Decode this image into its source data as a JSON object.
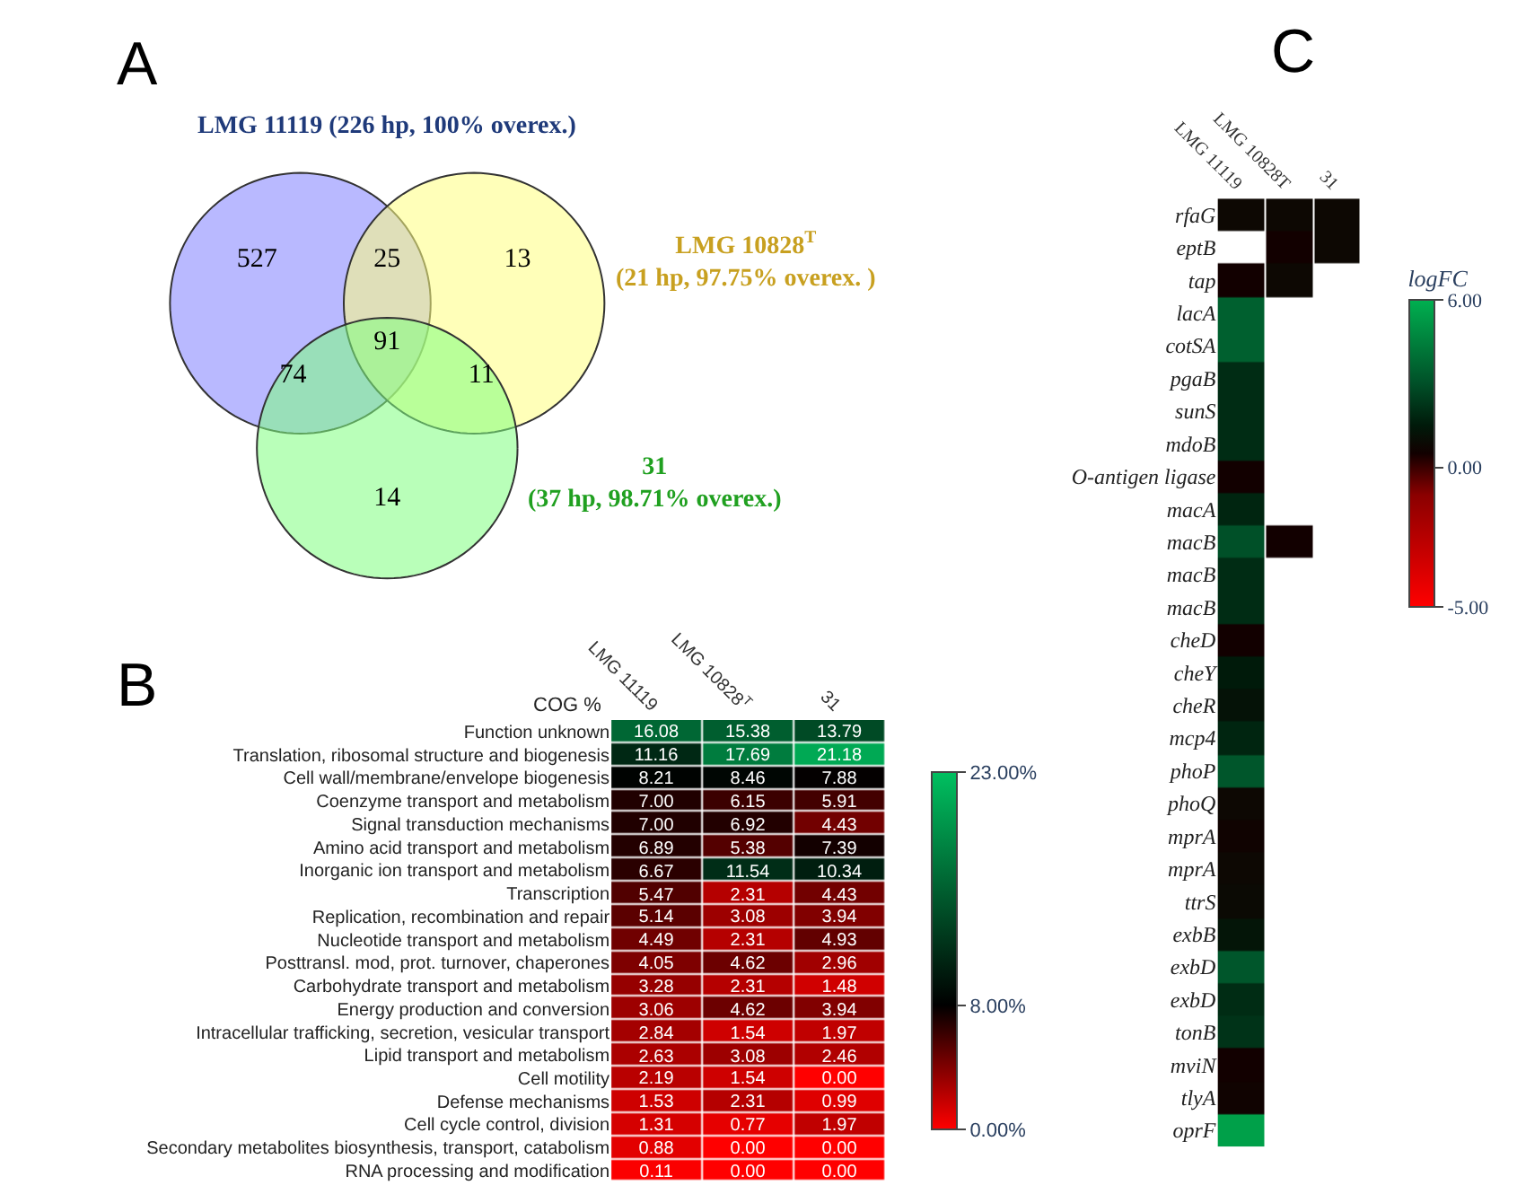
{
  "chart_data": [
    {
      "type": "other",
      "title": "A",
      "annotations": [
        "LMG 11119 (226 hp, 100% overex.)",
        "LMG 10828$^{T}$ (21 hp, 97.75% overex. )",
        "31 (37 hp, 98.71% overex.)",
        "527",
        "25",
        "13",
        "74",
        "91",
        "11",
        "14"
      ]
    },
    {
      "type": "heatmap",
      "title": "B",
      "ylabel": "COG %",
      "categories": [
        "LMG 11119",
        "LMG 10828$^{T}$",
        "31"
      ],
      "y_categories": [
        "Function unknown",
        "Translation, ribosomal structure and biogenesis",
        "Cell wall/membrane/envelope biogenesis",
        "Coenzyme transport and metabolism",
        "Signal transduction mechanisms",
        "Amino acid transport and metabolism",
        "Inorganic ion transport and metabolism",
        "Transcription",
        "Replication, recombination and repair",
        "Nucleotide transport and metabolism",
        "Posttransl. mod, prot. turnover, chaperones",
        "Carbohydrate transport and metabolism",
        "Energy production and conversion",
        "Intracellular trafficking, secretion, vesicular transport",
        "Lipid transport and metabolism",
        "Cell motility",
        "Defense mechanisms",
        "Cell cycle control, division",
        "Secondary metabolites biosynthesis, transport, catabolism",
        "RNA processing and modification"
      ],
      "cells": [
        [
          16.08,
          15.38,
          13.79
        ],
        [
          11.16,
          17.69,
          21.18
        ],
        [
          8.21,
          8.46,
          7.88
        ],
        [
          7.0,
          6.15,
          5.91
        ],
        [
          7.0,
          6.92,
          4.43
        ],
        [
          6.89,
          5.38,
          7.39
        ],
        [
          6.67,
          11.54,
          10.34
        ],
        [
          5.47,
          2.31,
          4.43
        ],
        [
          5.14,
          3.08,
          3.94
        ],
        [
          4.49,
          2.31,
          4.93
        ],
        [
          4.05,
          4.62,
          2.96
        ],
        [
          3.28,
          2.31,
          1.48
        ],
        [
          3.06,
          4.62,
          3.94
        ],
        [
          2.84,
          1.54,
          1.97
        ],
        [
          2.63,
          3.08,
          2.46
        ],
        [
          2.19,
          1.54,
          0.0
        ],
        [
          1.53,
          2.31,
          0.99
        ],
        [
          1.31,
          0.77,
          1.97
        ],
        [
          0.88,
          0.0,
          0.0
        ],
        [
          0.11,
          0.0,
          0.0
        ]
      ],
      "cell_labels": [
        [
          "16.08",
          "15.38",
          "13.79"
        ],
        [
          "11.16",
          "17.69",
          "21.18"
        ],
        [
          "8.21",
          "8.46",
          "7.88"
        ],
        [
          "7.00",
          "6.15",
          "5.91"
        ],
        [
          "7.00",
          "6.92",
          "4.43"
        ],
        [
          "6.89",
          "5.38",
          "7.39"
        ],
        [
          "6.67",
          "11.54",
          "10.34"
        ],
        [
          "5.47",
          "2.31",
          "4.43"
        ],
        [
          "5.14",
          "3.08",
          "3.94"
        ],
        [
          "4.49",
          "2.31",
          "4.93"
        ],
        [
          "4.05",
          "4.62",
          "2.96"
        ],
        [
          "3.28",
          "2.31",
          "1.48"
        ],
        [
          "3.06",
          "4.62",
          "3.94"
        ],
        [
          "2.84",
          "1.54",
          "1.97"
        ],
        [
          "2.63",
          "3.08",
          "2.46"
        ],
        [
          "2.19",
          "1.54",
          "0.00"
        ],
        [
          "1.53",
          "2.31",
          "0.99"
        ],
        [
          "1.31",
          "0.77",
          "1.97"
        ],
        [
          "0.88",
          "0.00",
          "0.00"
        ],
        [
          "0.11",
          "0.00",
          "0.00"
        ]
      ],
      "clim": [
        0,
        23
      ],
      "cticks": [
        {
          "value": 0,
          "label": "0.00%"
        },
        {
          "value": 8,
          "label": "8.00%"
        },
        {
          "value": 23,
          "label": "23.00%"
        }
      ]
    },
    {
      "type": "heatmap",
      "title": "C",
      "clabel": "logFC",
      "categories": [
        "LMG 11119",
        "LMG 10828T",
        "31"
      ],
      "y_categories": [
        "rfaG",
        "eptB",
        "tap",
        "lacA",
        "cotSA",
        "pgaB",
        "sunS",
        "mdoB",
        "O-antigen ligase",
        "macA",
        "macB",
        "macB",
        "macB",
        "cheD",
        "cheY",
        "cheR",
        "mcp4",
        "phoP",
        "phoQ",
        "mprA",
        "mprA",
        "ttrS",
        "exbB",
        "exbD",
        "exbD",
        "tonB",
        "mviN",
        "tlyA",
        "oprF"
      ],
      "cells": [
        [
          0.8,
          0.8,
          0.8
        ],
        [
          null,
          0.5,
          0.8
        ],
        [
          0.5,
          0.8,
          null
        ],
        [
          3.5,
          null,
          null
        ],
        [
          3.5,
          null,
          null
        ],
        [
          2,
          null,
          null
        ],
        [
          2,
          null,
          null
        ],
        [
          2,
          null,
          null
        ],
        [
          0.5,
          null,
          null
        ],
        [
          1.8,
          null,
          null
        ],
        [
          3,
          0.5,
          null
        ],
        [
          2,
          null,
          null
        ],
        [
          2,
          null,
          null
        ],
        [
          0.5,
          null,
          null
        ],
        [
          1.5,
          null,
          null
        ],
        [
          1.2,
          null,
          null
        ],
        [
          1.8,
          null,
          null
        ],
        [
          3.2,
          null,
          null
        ],
        [
          0.8,
          null,
          null
        ],
        [
          0.6,
          null,
          null
        ],
        [
          0.8,
          null,
          null
        ],
        [
          0.9,
          null,
          null
        ],
        [
          1.3,
          null,
          null
        ],
        [
          3.2,
          null,
          null
        ],
        [
          2,
          null,
          null
        ],
        [
          2.2,
          null,
          null
        ],
        [
          0.5,
          null,
          null
        ],
        [
          0.6,
          null,
          null
        ],
        [
          5.5,
          null,
          null
        ]
      ],
      "clim": [
        -5,
        6
      ],
      "cticks": [
        {
          "value": 6,
          "label": "6.00"
        },
        {
          "value": 0,
          "label": "0.00"
        },
        {
          "value": -5,
          "label": "-5.00"
        }
      ]
    }
  ]
}
